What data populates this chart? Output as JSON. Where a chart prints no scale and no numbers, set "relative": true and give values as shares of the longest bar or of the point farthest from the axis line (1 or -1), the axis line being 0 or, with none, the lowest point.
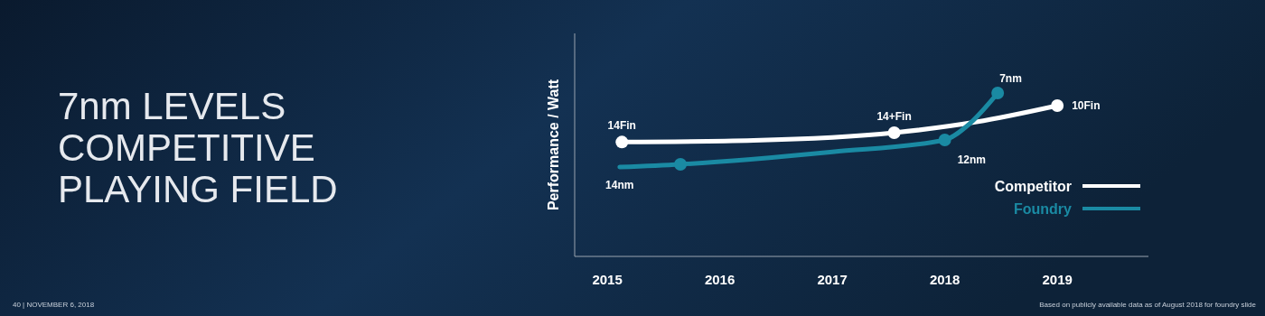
{
  "chart_data": {
    "type": "line",
    "title": "7nm LEVELS COMPETITIVE PLAYING FIELD",
    "ylabel": "Performance / Watt",
    "relative": true,
    "xlim": [
      2014.71,
      2019.81
    ],
    "xticks": [
      2015,
      2016,
      2017,
      2018,
      2019
    ],
    "legend": "right",
    "marker": "none",
    "line_style": "solid",
    "series": [
      {
        "name": "Competitor",
        "color": "#ffffff",
        "x": [
          2015.13,
          2016.3,
          2017.55,
          2018.28,
          2019.0
        ],
        "values": [
          0.7,
          0.71,
          0.757,
          0.823,
          0.923
        ]
      },
      {
        "name": "Foundry",
        "color": "#1a8aa3",
        "x": [
          2015.11,
          2015.65,
          2017.0,
          2018.0,
          2018.2,
          2018.47
        ],
        "values": [
          0.547,
          0.564,
          0.64,
          0.713,
          0.8,
          1.0
        ]
      },
      {
        "type": "scatter",
        "color": "#ffffff",
        "marker": "circle",
        "x": [
          2015.13,
          2017.55,
          2019.0
        ],
        "values": [
          0.7,
          0.757,
          0.923
        ]
      },
      {
        "type": "scatter",
        "color": "#1a8aa3",
        "marker": "circle",
        "x": [
          2015.65,
          2018.0,
          2018.47
        ],
        "values": [
          0.564,
          0.713,
          1.0
        ]
      }
    ],
    "annotations": [
      {
        "text": "14Fin",
        "x": 2015.13,
        "y": 0.7
      },
      {
        "text": "14+Fin",
        "x": 2017.55,
        "y": 0.757
      },
      {
        "text": "10Fin",
        "x": 2019.0,
        "y": 0.923
      },
      {
        "text": "14nm",
        "x": 2015.11,
        "y": 0.547
      },
      {
        "text": "12nm",
        "x": 2018.0,
        "y": 0.713
      },
      {
        "text": "7nm",
        "x": 2018.47,
        "y": 1.0
      },
      "40 | NOVEMBER 6, 2018",
      "Based on publicly available data as of August 2018 for foundry slide"
    ]
  }
}
